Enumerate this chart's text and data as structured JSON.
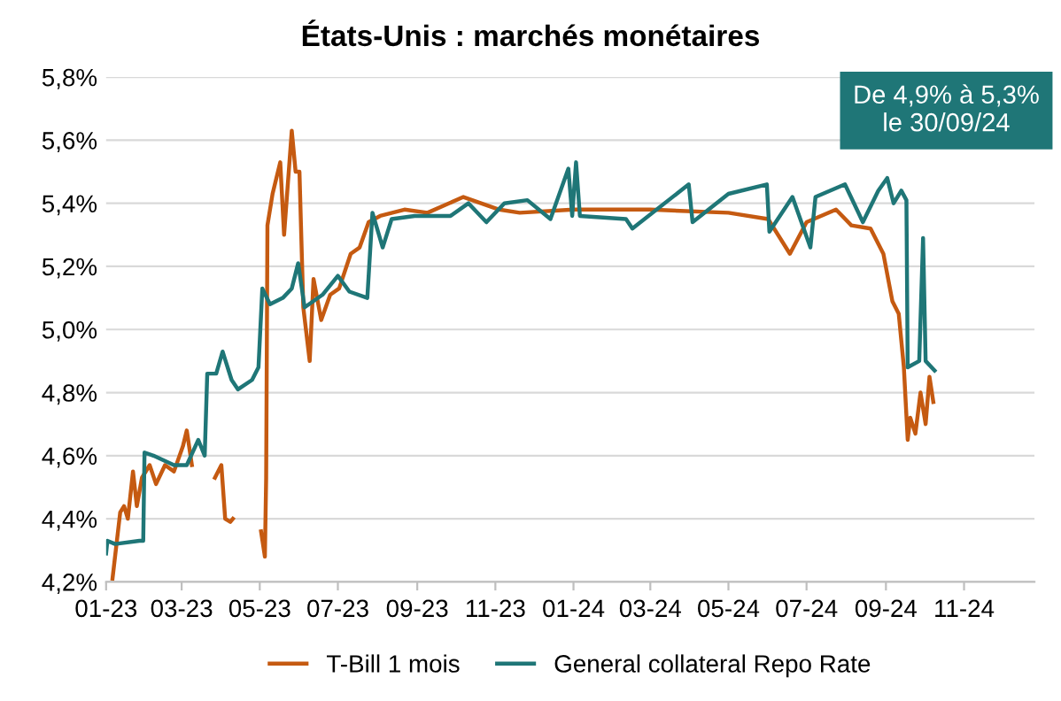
{
  "chart_data": {
    "type": "line",
    "title": "États-Unis : marchés monétaires",
    "series": [
      {
        "name": "T-Bill 1 mois",
        "color": "#c55a11",
        "x": [
          "2023-01-06",
          "2023-01-12",
          "2023-01-15",
          "2023-01-18",
          "2023-01-22",
          "2023-01-25",
          "2023-01-29",
          "2023-02-04",
          "2023-02-09",
          "2023-02-16",
          "2023-02-23",
          "2023-03-02",
          "2023-03-05",
          "2023-03-09",
          "2023-03-12",
          "2023-03-27",
          "2023-04-01",
          "2023-04-04",
          "2023-04-08",
          "2023-04-10",
          "2023-04-14",
          "2023-05-02",
          "2023-05-05",
          "2023-05-06",
          "2023-05-07",
          "2023-05-11",
          "2023-05-17",
          "2023-05-20",
          "2023-05-26",
          "2023-05-29",
          "2023-06-01",
          "2023-06-04",
          "2023-06-09",
          "2023-06-12",
          "2023-06-18",
          "2023-06-25",
          "2023-07-02",
          "2023-07-11",
          "2023-07-18",
          "2023-07-25",
          "2023-08-03",
          "2023-08-22",
          "2023-09-09",
          "2023-10-07",
          "2023-11-04",
          "2023-11-20",
          "2024-01-01",
          "2024-03-01",
          "2024-05-01",
          "2024-06-01",
          "2024-06-18",
          "2024-07-01",
          "2024-07-24",
          "2024-08-05",
          "2024-08-20",
          "2024-08-30",
          "2024-09-06",
          "2024-09-11",
          "2024-09-15",
          "2024-09-18",
          "2024-09-20",
          "2024-09-24",
          "2024-09-28",
          "2024-10-02",
          "2024-10-05",
          "2024-10-08"
        ],
        "values": [
          4.21,
          4.42,
          4.44,
          4.4,
          4.55,
          4.44,
          4.53,
          4.57,
          4.51,
          4.57,
          4.55,
          4.63,
          4.68,
          4.57,
          null,
          4.53,
          4.57,
          4.4,
          4.39,
          4.4,
          null,
          4.36,
          4.28,
          4.53,
          5.33,
          5.43,
          5.53,
          5.3,
          5.63,
          5.5,
          5.5,
          5.07,
          4.9,
          5.16,
          5.03,
          5.11,
          5.13,
          5.24,
          5.26,
          5.34,
          5.36,
          5.38,
          5.37,
          5.42,
          5.38,
          5.37,
          5.38,
          5.38,
          5.37,
          5.35,
          5.24,
          5.34,
          5.38,
          5.33,
          5.32,
          5.24,
          5.09,
          5.05,
          4.88,
          4.65,
          4.72,
          4.67,
          4.8,
          4.7,
          4.85,
          4.77
        ]
      },
      {
        "name": "General collateral Repo Rate",
        "color": "#1f7677",
        "x": [
          "2023-01-01",
          "2023-01-02",
          "2023-01-08",
          "2023-01-27",
          "2023-01-30",
          "2023-01-31",
          "2023-02-07",
          "2023-02-23",
          "2023-03-05",
          "2023-03-14",
          "2023-03-19",
          "2023-03-21",
          "2023-03-28",
          "2023-04-02",
          "2023-04-09",
          "2023-04-14",
          "2023-04-25",
          "2023-04-30",
          "2023-05-03",
          "2023-05-09",
          "2023-05-19",
          "2023-05-26",
          "2023-05-31",
          "2023-06-05",
          "2023-06-19",
          "2023-07-01",
          "2023-07-10",
          "2023-07-24",
          "2023-07-28",
          "2023-08-05",
          "2023-08-12",
          "2023-08-30",
          "2023-09-27",
          "2023-10-11",
          "2023-10-25",
          "2023-11-08",
          "2023-11-26",
          "2023-12-14",
          "2023-12-28",
          "2023-12-31",
          "2024-01-03",
          "2024-01-06",
          "2024-02-11",
          "2024-02-16",
          "2024-03-31",
          "2024-04-03",
          "2024-05-01",
          "2024-05-31",
          "2024-06-02",
          "2024-06-20",
          "2024-07-04",
          "2024-07-08",
          "2024-07-31",
          "2024-08-14",
          "2024-08-26",
          "2024-09-02",
          "2024-09-07",
          "2024-09-13",
          "2024-09-17",
          "2024-09-18",
          "2024-09-27",
          "2024-09-30",
          "2024-10-02",
          "2024-10-09"
        ],
        "values": [
          4.29,
          4.33,
          4.32,
          4.33,
          4.33,
          4.61,
          4.6,
          4.57,
          4.57,
          4.65,
          4.6,
          4.86,
          4.86,
          4.93,
          4.84,
          4.81,
          4.84,
          4.88,
          5.13,
          5.08,
          5.1,
          5.13,
          5.21,
          5.07,
          5.11,
          5.17,
          5.12,
          5.1,
          5.37,
          5.26,
          5.35,
          5.36,
          5.36,
          5.4,
          5.34,
          5.4,
          5.41,
          5.35,
          5.51,
          5.36,
          5.53,
          5.36,
          5.35,
          5.32,
          5.46,
          5.34,
          5.43,
          5.46,
          5.31,
          5.42,
          5.26,
          5.42,
          5.46,
          5.34,
          5.44,
          5.48,
          5.4,
          5.44,
          5.41,
          4.88,
          4.9,
          5.29,
          4.9,
          4.87
        ]
      }
    ],
    "xlim": [
      "2023-01-01",
      "2024-12-26"
    ],
    "xticks": [
      {
        "value": "2023-01-01",
        "label": "01-23"
      },
      {
        "value": "2023-03-01",
        "label": "03-23"
      },
      {
        "value": "2023-05-01",
        "label": "05-23"
      },
      {
        "value": "2023-07-01",
        "label": "07-23"
      },
      {
        "value": "2023-09-01",
        "label": "09-23"
      },
      {
        "value": "2023-11-01",
        "label": "11-23"
      },
      {
        "value": "2024-01-01",
        "label": "01-24"
      },
      {
        "value": "2024-03-01",
        "label": "03-24"
      },
      {
        "value": "2024-05-01",
        "label": "05-24"
      },
      {
        "value": "2024-07-01",
        "label": "07-24"
      },
      {
        "value": "2024-09-01",
        "label": "09-24"
      },
      {
        "value": "2024-11-01",
        "label": "11-24"
      }
    ],
    "ylim": [
      4.2,
      5.8
    ],
    "yticks": [
      {
        "value": 4.2,
        "label": "4,2%"
      },
      {
        "value": 4.4,
        "label": "4,4%"
      },
      {
        "value": 4.6,
        "label": "4,6%"
      },
      {
        "value": 4.8,
        "label": "4,8%"
      },
      {
        "value": 5.0,
        "label": "5,0%"
      },
      {
        "value": 5.2,
        "label": "5,2%"
      },
      {
        "value": 5.4,
        "label": "5,4%"
      },
      {
        "value": 5.6,
        "label": "5,6%"
      },
      {
        "value": 5.8,
        "label": "5,8%"
      }
    ],
    "annotations": [
      "De 4,9% à 5,3%\nle 30/09/24"
    ],
    "grid": "y",
    "legend": "bottom",
    "line_style": "solid",
    "marker": "none"
  }
}
